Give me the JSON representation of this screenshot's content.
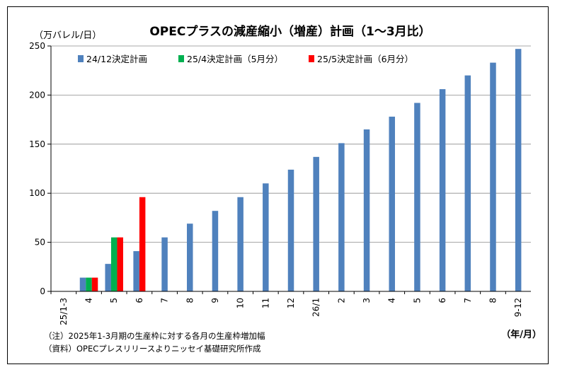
{
  "chart_data": {
    "type": "bar",
    "title": "OPECプラスの減産縮小（増産）計画（1～3月比）",
    "ylabel": "（万バレル/日）",
    "xlabel": "（年/月）",
    "ylim": [
      0,
      250
    ],
    "yticks": [
      0,
      50,
      100,
      150,
      200,
      250
    ],
    "grid": true,
    "legend_position": "top-left",
    "categories": [
      "25/1-3",
      "4",
      "5",
      "6",
      "7",
      "8",
      "9",
      "10",
      "11",
      "12",
      "26/1",
      "2",
      "3",
      "4",
      "5",
      "6",
      "7",
      "8",
      "9-12"
    ],
    "series": [
      {
        "name": "24/12決定計画",
        "color": "#4F81BD",
        "values": [
          null,
          14,
          28,
          41,
          55,
          69,
          82,
          96,
          110,
          124,
          137,
          151,
          165,
          178,
          192,
          206,
          220,
          233,
          247
        ]
      },
      {
        "name": "25/4決定計画（5月分）",
        "color": "#00B050",
        "values": [
          null,
          14,
          55,
          null,
          null,
          null,
          null,
          null,
          null,
          null,
          null,
          null,
          null,
          null,
          null,
          null,
          null,
          null,
          null
        ]
      },
      {
        "name": "25/5決定計画（6月分）",
        "color": "#FF0000",
        "values": [
          null,
          14,
          55,
          96,
          null,
          null,
          null,
          null,
          null,
          null,
          null,
          null,
          null,
          null,
          null,
          null,
          null,
          null,
          null
        ]
      }
    ]
  },
  "notes": {
    "note1": "（注）2025年1-3月期の生産枠に対する各月の生産枠増加幅",
    "note2": "（資料）OPECプレスリリースよりニッセイ基礎研究所作成"
  }
}
